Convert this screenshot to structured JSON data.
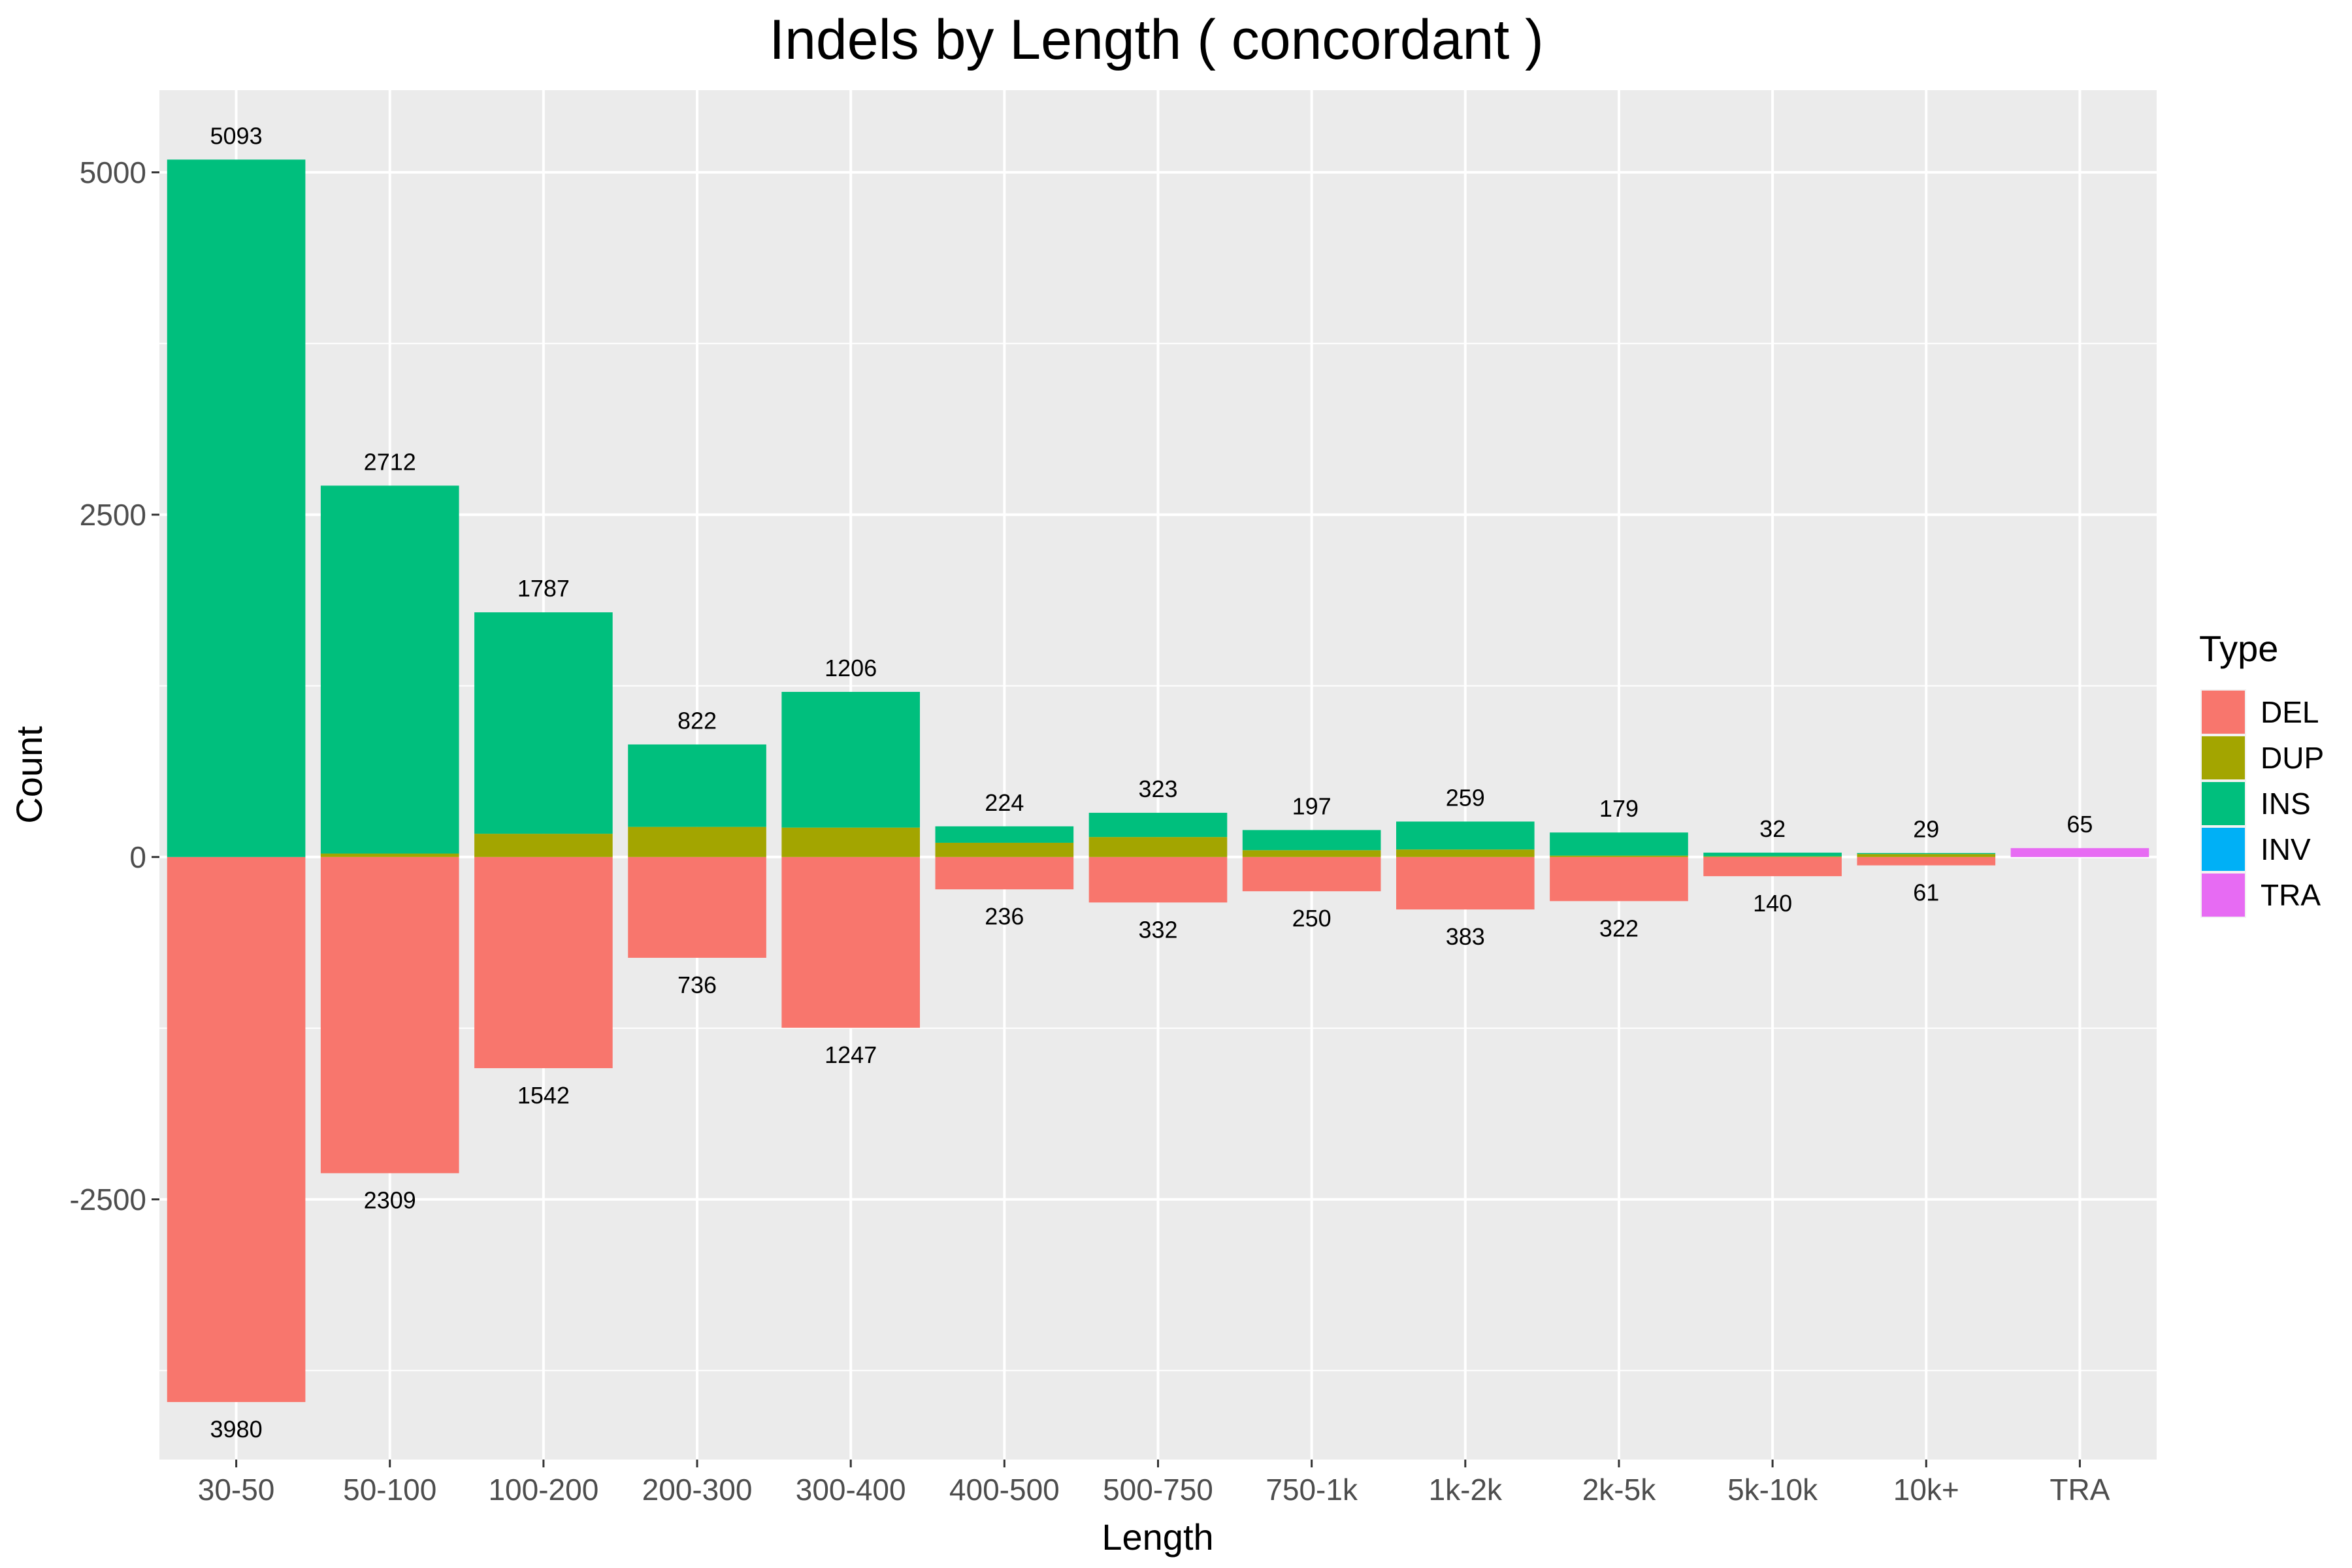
{
  "chart_data": {
    "type": "bar",
    "stacked": true,
    "diverging": true,
    "title": "Indels by Length ( concordant )",
    "xlabel": "Length",
    "ylabel": "Count",
    "categories": [
      "30-50",
      "50-100",
      "100-200",
      "200-300",
      "300-400",
      "400-500",
      "500-750",
      "750-1k",
      "1k-2k",
      "2k-5k",
      "5k-10k",
      "10k+",
      "TRA"
    ],
    "ylim": [
      -4400,
      5600
    ],
    "yticks": [
      -2500,
      0,
      2500,
      5000
    ],
    "series": [
      {
        "name": "DEL",
        "color": "#F8766D",
        "values": [
          -3980,
          -2309,
          -1542,
          -736,
          -1247,
          -236,
          -332,
          -250,
          -383,
          -322,
          -140,
          -61,
          0
        ]
      },
      {
        "name": "DUP",
        "color": "#A3A500",
        "values": [
          0,
          25,
          170,
          220,
          215,
          104,
          146,
          50,
          55,
          10,
          5,
          22,
          0
        ]
      },
      {
        "name": "INS",
        "color": "#00BF7D",
        "values": [
          5093,
          2687,
          1617,
          602,
          991,
          120,
          177,
          147,
          204,
          169,
          27,
          7,
          0
        ]
      },
      {
        "name": "INV",
        "color": "#00B0F6",
        "values": [
          0,
          0,
          0,
          0,
          0,
          0,
          0,
          0,
          0,
          0,
          0,
          0,
          0
        ]
      },
      {
        "name": "TRA",
        "color": "#E76BF3",
        "values": [
          0,
          0,
          0,
          0,
          0,
          0,
          0,
          0,
          0,
          0,
          0,
          0,
          65
        ]
      }
    ],
    "positive_totals": [
      "5093",
      "2712",
      "1787",
      "822",
      "1206",
      "224",
      "323",
      "197",
      "259",
      "179",
      "32",
      "29",
      "65"
    ],
    "negative_totals": [
      "3980",
      "2309",
      "1542",
      "736",
      "1247",
      "236",
      "332",
      "250",
      "383",
      "322",
      "140",
      "61",
      ""
    ],
    "legend": {
      "title": "Type",
      "placement": "right"
    },
    "grid": true,
    "panel_background": "#EBEBEB",
    "grid_color": "#FFFFFF"
  }
}
